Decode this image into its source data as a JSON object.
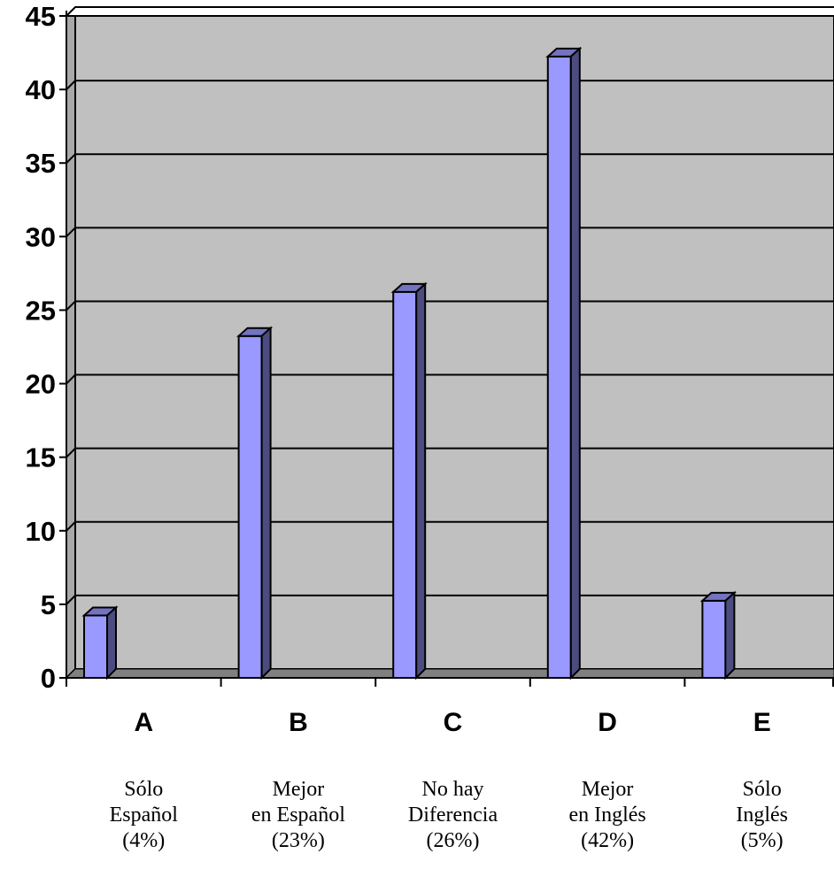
{
  "chart_data": {
    "type": "bar",
    "categories": [
      "A",
      "B",
      "C",
      "D",
      "E"
    ],
    "values": [
      4,
      23,
      26,
      42,
      5
    ],
    "descriptions": [
      [
        "Sólo",
        "Español",
        "(4%)"
      ],
      [
        "Mejor",
        "en Español",
        "(23%)"
      ],
      [
        "No hay",
        "Diferencia",
        "(26%)"
      ],
      [
        "Mejor",
        "en Inglés",
        "(42%)"
      ],
      [
        "Sólo",
        "Inglés",
        "(5%)"
      ]
    ],
    "yticks": [
      "0",
      "5",
      "10",
      "15",
      "20",
      "25",
      "30",
      "35",
      "40",
      "45"
    ],
    "ylim": [
      0,
      45
    ],
    "grid": true,
    "legend": "none",
    "colors": {
      "bar_front": "#9999ff",
      "bar_side": "#4c4c80",
      "bar_top": "#7373c0",
      "plot_bg": "#c0c0c0",
      "floor": "#808080"
    }
  }
}
